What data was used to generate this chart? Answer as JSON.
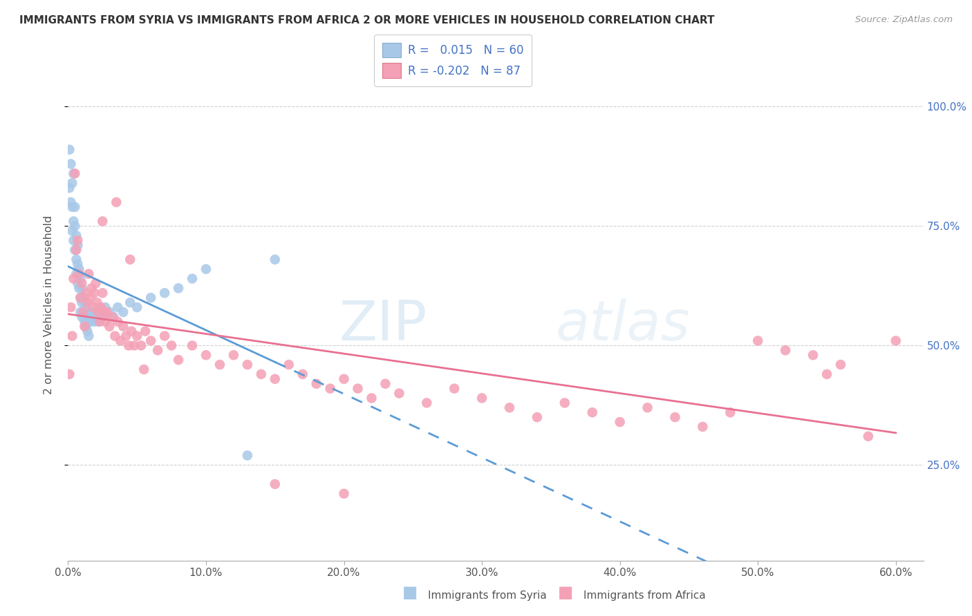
{
  "title": "IMMIGRANTS FROM SYRIA VS IMMIGRANTS FROM AFRICA 2 OR MORE VEHICLES IN HOUSEHOLD CORRELATION CHART",
  "source": "Source: ZipAtlas.com",
  "ylabel": "2 or more Vehicles in Household",
  "x_tick_vals": [
    0.0,
    0.1,
    0.2,
    0.3,
    0.4,
    0.5,
    0.6
  ],
  "x_tick_labels": [
    "0.0%",
    "10.0%",
    "20.0%",
    "30.0%",
    "40.0%",
    "50.0%",
    "60.0%"
  ],
  "y_tick_vals": [
    0.25,
    0.5,
    0.75,
    1.0
  ],
  "y_tick_labels": [
    "25.0%",
    "50.0%",
    "75.0%",
    "100.0%"
  ],
  "xlim": [
    0.0,
    0.62
  ],
  "ylim": [
    0.05,
    1.12
  ],
  "syria_R": 0.015,
  "syria_N": 60,
  "africa_R": -0.202,
  "africa_N": 87,
  "syria_color": "#a8c8e8",
  "africa_color": "#f4a0b5",
  "trendline_syria_color": "#5b9bd5",
  "trendline_africa_color": "#e87090",
  "legend_syria_label": "Immigrants from Syria",
  "legend_africa_label": "Immigrants from Africa",
  "syria_x": [
    0.001,
    0.001,
    0.002,
    0.002,
    0.003,
    0.003,
    0.003,
    0.004,
    0.004,
    0.004,
    0.005,
    0.005,
    0.005,
    0.006,
    0.006,
    0.006,
    0.007,
    0.007,
    0.007,
    0.008,
    0.008,
    0.009,
    0.009,
    0.009,
    0.01,
    0.01,
    0.01,
    0.011,
    0.011,
    0.012,
    0.012,
    0.013,
    0.013,
    0.014,
    0.014,
    0.015,
    0.015,
    0.016,
    0.017,
    0.018,
    0.019,
    0.02,
    0.021,
    0.022,
    0.023,
    0.025,
    0.027,
    0.03,
    0.033,
    0.036,
    0.04,
    0.045,
    0.05,
    0.06,
    0.07,
    0.08,
    0.09,
    0.1,
    0.13,
    0.15
  ],
  "syria_y": [
    0.91,
    0.83,
    0.88,
    0.8,
    0.84,
    0.79,
    0.74,
    0.86,
    0.76,
    0.72,
    0.79,
    0.75,
    0.7,
    0.73,
    0.68,
    0.65,
    0.71,
    0.67,
    0.63,
    0.66,
    0.62,
    0.64,
    0.6,
    0.57,
    0.62,
    0.59,
    0.56,
    0.6,
    0.57,
    0.59,
    0.55,
    0.58,
    0.54,
    0.57,
    0.53,
    0.56,
    0.52,
    0.55,
    0.56,
    0.57,
    0.55,
    0.57,
    0.56,
    0.55,
    0.57,
    0.56,
    0.58,
    0.57,
    0.56,
    0.58,
    0.57,
    0.59,
    0.58,
    0.6,
    0.61,
    0.62,
    0.64,
    0.66,
    0.27,
    0.68
  ],
  "africa_x": [
    0.001,
    0.002,
    0.003,
    0.004,
    0.005,
    0.006,
    0.007,
    0.008,
    0.009,
    0.01,
    0.011,
    0.012,
    0.013,
    0.014,
    0.015,
    0.016,
    0.017,
    0.018,
    0.019,
    0.02,
    0.021,
    0.022,
    0.023,
    0.024,
    0.025,
    0.026,
    0.027,
    0.028,
    0.03,
    0.032,
    0.034,
    0.036,
    0.038,
    0.04,
    0.042,
    0.044,
    0.046,
    0.048,
    0.05,
    0.053,
    0.056,
    0.06,
    0.065,
    0.07,
    0.075,
    0.08,
    0.09,
    0.1,
    0.11,
    0.12,
    0.13,
    0.14,
    0.15,
    0.16,
    0.17,
    0.18,
    0.19,
    0.2,
    0.21,
    0.22,
    0.23,
    0.24,
    0.26,
    0.28,
    0.3,
    0.32,
    0.34,
    0.36,
    0.38,
    0.4,
    0.42,
    0.44,
    0.46,
    0.48,
    0.5,
    0.52,
    0.54,
    0.56,
    0.58,
    0.6,
    0.025,
    0.035,
    0.045,
    0.055,
    0.15,
    0.2,
    0.55
  ],
  "africa_y": [
    0.44,
    0.58,
    0.52,
    0.64,
    0.86,
    0.7,
    0.72,
    0.65,
    0.6,
    0.63,
    0.57,
    0.54,
    0.61,
    0.59,
    0.65,
    0.6,
    0.62,
    0.58,
    0.61,
    0.63,
    0.59,
    0.57,
    0.55,
    0.58,
    0.61,
    0.57,
    0.55,
    0.57,
    0.54,
    0.56,
    0.52,
    0.55,
    0.51,
    0.54,
    0.52,
    0.5,
    0.53,
    0.5,
    0.52,
    0.5,
    0.53,
    0.51,
    0.49,
    0.52,
    0.5,
    0.47,
    0.5,
    0.48,
    0.46,
    0.48,
    0.46,
    0.44,
    0.43,
    0.46,
    0.44,
    0.42,
    0.41,
    0.43,
    0.41,
    0.39,
    0.42,
    0.4,
    0.38,
    0.41,
    0.39,
    0.37,
    0.35,
    0.38,
    0.36,
    0.34,
    0.37,
    0.35,
    0.33,
    0.36,
    0.51,
    0.49,
    0.48,
    0.46,
    0.31,
    0.51,
    0.76,
    0.8,
    0.68,
    0.45,
    0.21,
    0.19,
    0.44
  ]
}
